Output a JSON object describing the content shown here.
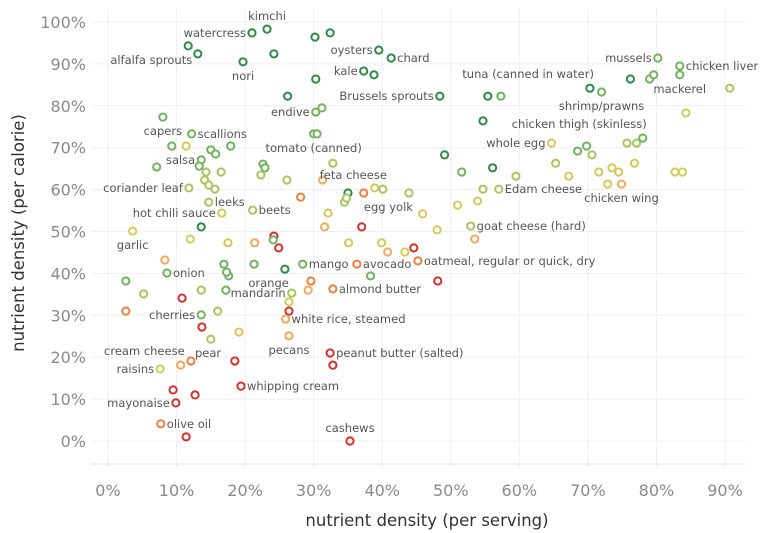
{
  "chart_data": {
    "type": "scatter",
    "xlabel": "nutrient density (per serving)",
    "ylabel": "nutrient density (per calorie)",
    "xlim": [
      0,
      90
    ],
    "ylim": [
      0,
      100
    ],
    "x_ticks": [
      "0%",
      "10%",
      "20%",
      "30%",
      "40%",
      "50%",
      "60%",
      "70%",
      "80%",
      "90%"
    ],
    "y_ticks": [
      "0%",
      "10%",
      "20%",
      "30%",
      "40%",
      "50%",
      "60%",
      "70%",
      "80%",
      "90%",
      "100%"
    ],
    "grid": true,
    "marker": "hollow-circle",
    "color_scale": [
      "#d7302a",
      "#f07f3c",
      "#f4a95a",
      "#d8c85a",
      "#a9c65e",
      "#6fb45d",
      "#2e8b45"
    ],
    "points": [
      {
        "x": 23.2,
        "y": 98.3,
        "label": "kimchi",
        "pos": "above"
      },
      {
        "x": 21.0,
        "y": 97.4,
        "label": "watercress",
        "pos": "left"
      },
      {
        "x": 30.2,
        "y": 96.4
      },
      {
        "x": 32.4,
        "y": 97.4
      },
      {
        "x": 11.7,
        "y": 94.3,
        "label": "alfalfa sprouts",
        "pos": "below-left"
      },
      {
        "x": 13.1,
        "y": 92.4
      },
      {
        "x": 24.2,
        "y": 92.4
      },
      {
        "x": 39.5,
        "y": 93.3,
        "label": "oysters",
        "pos": "left"
      },
      {
        "x": 41.3,
        "y": 91.4,
        "label": "chard",
        "pos": "right"
      },
      {
        "x": 19.7,
        "y": 90.5,
        "label": "nori",
        "pos": "below"
      },
      {
        "x": 37.3,
        "y": 88.3,
        "label": "kale",
        "pos": "left"
      },
      {
        "x": 38.8,
        "y": 87.4
      },
      {
        "x": 30.3,
        "y": 86.4
      },
      {
        "x": 26.2,
        "y": 82.3
      },
      {
        "x": 48.4,
        "y": 82.3,
        "label": "Brussels sprouts",
        "pos": "left"
      },
      {
        "x": 30.3,
        "y": 78.5,
        "label": "endive",
        "pos": "left"
      },
      {
        "x": 31.2,
        "y": 79.5
      },
      {
        "x": 8.0,
        "y": 77.3,
        "label": "capers",
        "pos": "below"
      },
      {
        "x": 12.2,
        "y": 73.3,
        "label": "scallions",
        "pos": "right"
      },
      {
        "x": 30.0,
        "y": 73.3,
        "label": "tomato (canned)",
        "pos": "below"
      },
      {
        "x": 30.5,
        "y": 73.3
      },
      {
        "x": 9.3,
        "y": 70.4
      },
      {
        "x": 11.4,
        "y": 70.4,
        "c": 3
      },
      {
        "x": 15.0,
        "y": 69.5
      },
      {
        "x": 15.7,
        "y": 68.5
      },
      {
        "x": 17.9,
        "y": 70.4
      },
      {
        "x": 13.6,
        "y": 67.1,
        "label": "salsa",
        "pos": "left"
      },
      {
        "x": 7.1,
        "y": 65.4
      },
      {
        "x": 13.3,
        "y": 65.6
      },
      {
        "x": 14.3,
        "y": 64.2
      },
      {
        "x": 16.5,
        "y": 64.2
      },
      {
        "x": 22.6,
        "y": 66.1
      },
      {
        "x": 22.9,
        "y": 65.2
      },
      {
        "x": 22.3,
        "y": 63.5
      },
      {
        "x": 26.1,
        "y": 62.3
      },
      {
        "x": 32.8,
        "y": 66.3,
        "c": 4
      },
      {
        "x": 31.3,
        "y": 62.3,
        "c": 2
      },
      {
        "x": 11.8,
        "y": 60.4,
        "label": "coriander leaf",
        "pos": "left"
      },
      {
        "x": 14.1,
        "y": 62.3
      },
      {
        "x": 14.7,
        "y": 61.1
      },
      {
        "x": 15.6,
        "y": 60.1
      },
      {
        "x": 14.7,
        "y": 57.0,
        "label": "leeks",
        "pos": "right"
      },
      {
        "x": 16.6,
        "y": 54.4,
        "label": "hot chili sauce",
        "pos": "left"
      },
      {
        "x": 21.1,
        "y": 55.1,
        "label": "beets",
        "pos": "right"
      },
      {
        "x": 28.1,
        "y": 58.2,
        "c": 1
      },
      {
        "x": 35.0,
        "y": 59.2,
        "c": 6
      },
      {
        "x": 34.5,
        "y": 57.0
      },
      {
        "x": 34.8,
        "y": 58.0
      },
      {
        "x": 37.3,
        "y": 59.2,
        "c": 1
      },
      {
        "x": 38.9,
        "y": 60.4,
        "c": 3
      },
      {
        "x": 40.1,
        "y": 60.1,
        "label": "feta cheese",
        "pos": "above-left"
      },
      {
        "x": 43.9,
        "y": 59.2,
        "label": "egg yolk",
        "pos": "below-left"
      },
      {
        "x": 32.1,
        "y": 54.4,
        "c": 3
      },
      {
        "x": 45.9,
        "y": 54.2,
        "c": 3
      },
      {
        "x": 3.6,
        "y": 50.1,
        "label": "garlic",
        "pos": "below"
      },
      {
        "x": 13.6,
        "y": 51.1,
        "c": 6
      },
      {
        "x": 12.0,
        "y": 48.2
      },
      {
        "x": 17.5,
        "y": 47.3
      },
      {
        "x": 21.4,
        "y": 47.3,
        "c": 2
      },
      {
        "x": 24.2,
        "y": 48.9,
        "c": 0
      },
      {
        "x": 24.1,
        "y": 48.0,
        "c": 5
      },
      {
        "x": 24.9,
        "y": 46.1,
        "c": 0
      },
      {
        "x": 31.6,
        "y": 51.1,
        "c": 2
      },
      {
        "x": 37.0,
        "y": 51.1,
        "c": 0
      },
      {
        "x": 35.1,
        "y": 47.3
      },
      {
        "x": 39.9,
        "y": 47.3
      },
      {
        "x": 40.8,
        "y": 45.1,
        "c": 2
      },
      {
        "x": 43.3,
        "y": 45.1,
        "c": 3
      },
      {
        "x": 44.6,
        "y": 46.1,
        "c": 0
      },
      {
        "x": 45.2,
        "y": 43.0,
        "label": "oatmeal, regular or quick, dry",
        "pos": "right",
        "c": 1
      },
      {
        "x": 48.0,
        "y": 50.4,
        "c": 3
      },
      {
        "x": 52.9,
        "y": 51.3,
        "label": "goat cheese (hard)",
        "pos": "right",
        "c": 4
      },
      {
        "x": 53.5,
        "y": 48.2,
        "c": 2
      },
      {
        "x": 48.1,
        "y": 38.2,
        "c": 0
      },
      {
        "x": 8.3,
        "y": 43.2,
        "c": 2
      },
      {
        "x": 8.6,
        "y": 40.1,
        "label": "onion",
        "pos": "right",
        "c": 5
      },
      {
        "x": 16.9,
        "y": 42.2,
        "c": 5
      },
      {
        "x": 17.6,
        "y": 39.4,
        "c": 5
      },
      {
        "x": 17.3,
        "y": 40.3,
        "c": 5
      },
      {
        "x": 21.3,
        "y": 42.2,
        "c": 5
      },
      {
        "x": 25.8,
        "y": 41.0,
        "label": "orange",
        "pos": "below-left",
        "c": 6
      },
      {
        "x": 28.4,
        "y": 42.2,
        "label": "mango",
        "pos": "right",
        "c": 5
      },
      {
        "x": 36.3,
        "y": 42.2,
        "label": "avocado",
        "pos": "right",
        "c": 1
      },
      {
        "x": 38.3,
        "y": 39.4,
        "c": 5
      },
      {
        "x": 29.6,
        "y": 38.2,
        "c": 1
      },
      {
        "x": 29.2,
        "y": 36.0,
        "c": 2
      },
      {
        "x": 32.8,
        "y": 36.3,
        "label": "almond butter",
        "pos": "right",
        "c": 1
      },
      {
        "x": 2.6,
        "y": 38.2,
        "c": 5
      },
      {
        "x": 5.2,
        "y": 35.1,
        "c": 4
      },
      {
        "x": 13.6,
        "y": 36.0,
        "c": 4
      },
      {
        "x": 10.8,
        "y": 34.1,
        "c": 0
      },
      {
        "x": 17.2,
        "y": 36.0,
        "c": 5
      },
      {
        "x": 16.0,
        "y": 31.0,
        "c": 4
      },
      {
        "x": 13.6,
        "y": 30.1,
        "label": "cherries",
        "pos": "left",
        "c": 5
      },
      {
        "x": 2.6,
        "y": 31.0,
        "c": 1
      },
      {
        "x": 26.8,
        "y": 35.3,
        "label": "mandarin",
        "pos": "left",
        "c": 4
      },
      {
        "x": 26.4,
        "y": 33.2,
        "c": 3
      },
      {
        "x": 26.4,
        "y": 31.0,
        "c": 0
      },
      {
        "x": 25.9,
        "y": 29.1,
        "label": "white rice, steamed",
        "pos": "right",
        "c": 2
      },
      {
        "x": 13.7,
        "y": 27.2,
        "c": 0
      },
      {
        "x": 15.0,
        "y": 24.3,
        "c": 4
      },
      {
        "x": 19.1,
        "y": 26.0,
        "c": 3
      },
      {
        "x": 26.4,
        "y": 25.1,
        "label": "pecans",
        "pos": "below",
        "c": 2
      },
      {
        "x": 32.4,
        "y": 21.0,
        "label": "peanut butter (salted)",
        "pos": "right",
        "c": 0
      },
      {
        "x": 32.8,
        "y": 18.1,
        "c": 0
      },
      {
        "x": 7.6,
        "y": 17.2,
        "label": "raisins",
        "pos": "left",
        "c": 3
      },
      {
        "x": 10.6,
        "y": 18.1,
        "label": "cream cheese",
        "pos": "above-left",
        "c": 2
      },
      {
        "x": 12.1,
        "y": 19.1,
        "label": "pear",
        "pos": "above-right",
        "c": 1
      },
      {
        "x": 18.5,
        "y": 19.1,
        "c": 0
      },
      {
        "x": 19.4,
        "y": 13.1,
        "label": "whipping cream",
        "pos": "right",
        "c": 0
      },
      {
        "x": 9.5,
        "y": 12.2,
        "c": 0
      },
      {
        "x": 12.7,
        "y": 11.0,
        "c": 0
      },
      {
        "x": 9.9,
        "y": 9.1,
        "label": "mayonaise",
        "pos": "left",
        "c": 0
      },
      {
        "x": 7.7,
        "y": 4.1,
        "label": "olive oil",
        "pos": "right",
        "c": 1
      },
      {
        "x": 11.4,
        "y": 1.0,
        "c": 0
      },
      {
        "x": 35.3,
        "y": 0.0,
        "label": "cashews",
        "pos": "above",
        "c": 0
      },
      {
        "x": 80.2,
        "y": 91.4,
        "label": "mussels",
        "pos": "left",
        "c": 5
      },
      {
        "x": 83.4,
        "y": 89.5,
        "label": "chicken liver",
        "pos": "right",
        "c": 5
      },
      {
        "x": 83.4,
        "y": 87.4,
        "label": "mackerel",
        "pos": "below",
        "c": 5
      },
      {
        "x": 76.2,
        "y": 86.4,
        "c": 6
      },
      {
        "x": 79.0,
        "y": 86.4,
        "c": 5
      },
      {
        "x": 79.6,
        "y": 87.4,
        "c": 5
      },
      {
        "x": 90.7,
        "y": 84.2,
        "c": 4
      },
      {
        "x": 70.3,
        "y": 84.2,
        "label": "tuna (canned in water)",
        "pos": "above-left",
        "c": 6
      },
      {
        "x": 72.0,
        "y": 83.3,
        "label": "shrimp/prawns",
        "pos": "below",
        "c": 5
      },
      {
        "x": 55.4,
        "y": 82.3,
        "c": 6
      },
      {
        "x": 57.3,
        "y": 82.3,
        "c": 5
      },
      {
        "x": 84.3,
        "y": 78.3,
        "c": 3
      },
      {
        "x": 54.7,
        "y": 76.4,
        "c": 6
      },
      {
        "x": 64.7,
        "y": 71.1,
        "label": "whole egg",
        "pos": "left",
        "c": 3
      },
      {
        "x": 68.5,
        "y": 69.2,
        "c": 5
      },
      {
        "x": 69.8,
        "y": 70.4,
        "c": 5
      },
      {
        "x": 70.6,
        "y": 68.3,
        "c": 4
      },
      {
        "x": 75.7,
        "y": 71.1,
        "c": 4
      },
      {
        "x": 77.1,
        "y": 71.1,
        "c": 4
      },
      {
        "x": 78.0,
        "y": 72.3,
        "label": "chicken thigh (skinless)",
        "pos": "above-left",
        "c": 5
      },
      {
        "x": 49.1,
        "y": 68.3,
        "c": 6
      },
      {
        "x": 51.6,
        "y": 64.2,
        "c": 5
      },
      {
        "x": 56.1,
        "y": 65.2,
        "c": 6
      },
      {
        "x": 59.5,
        "y": 63.2,
        "c": 4
      },
      {
        "x": 65.3,
        "y": 66.3,
        "c": 4
      },
      {
        "x": 67.2,
        "y": 63.2,
        "c": 3
      },
      {
        "x": 71.6,
        "y": 64.2,
        "c": 3
      },
      {
        "x": 73.5,
        "y": 65.2,
        "c": 3
      },
      {
        "x": 74.5,
        "y": 64.2,
        "c": 3
      },
      {
        "x": 76.8,
        "y": 66.3,
        "c": 3
      },
      {
        "x": 82.7,
        "y": 64.2,
        "c": 3
      },
      {
        "x": 83.8,
        "y": 64.2,
        "c": 3
      },
      {
        "x": 72.9,
        "y": 61.3,
        "c": 3
      },
      {
        "x": 74.9,
        "y": 61.3,
        "label": "chicken wing",
        "pos": "below",
        "c": 2
      },
      {
        "x": 54.7,
        "y": 60.1,
        "c": 4
      },
      {
        "x": 57.0,
        "y": 60.1,
        "label": "Edam cheese",
        "pos": "right",
        "c": 4
      },
      {
        "x": 53.9,
        "y": 57.3,
        "c": 3
      },
      {
        "x": 51.0,
        "y": 56.3,
        "c": 3
      }
    ]
  }
}
